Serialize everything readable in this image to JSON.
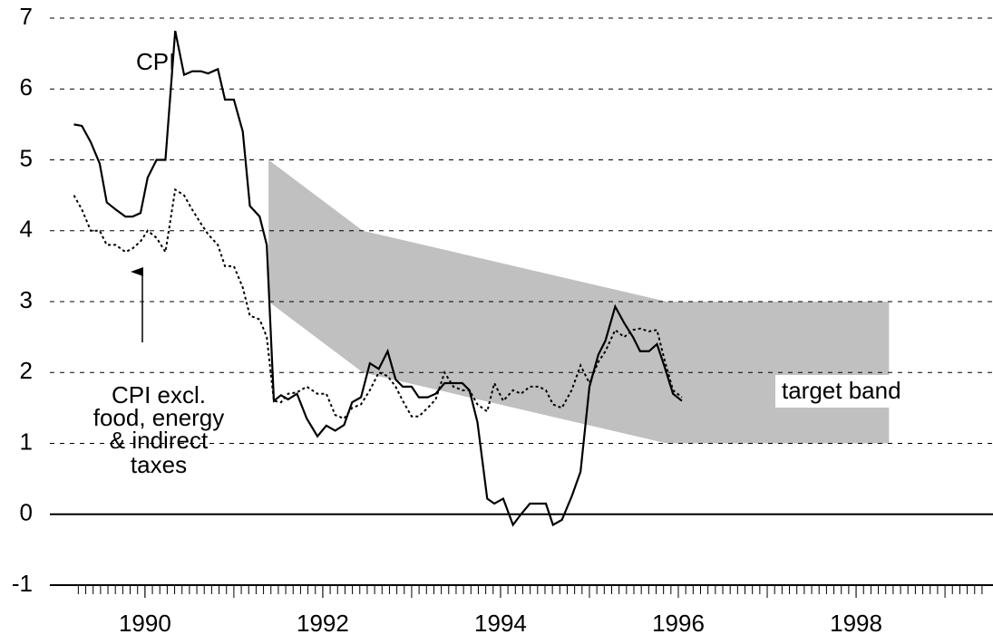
{
  "chart_data": {
    "type": "line",
    "x": [
      1989.2,
      1989.29,
      1989.39,
      1989.49,
      1989.57,
      1989.67,
      1989.78,
      1989.86,
      1989.95,
      1990.03,
      1990.13,
      1990.23,
      1990.34,
      1990.44,
      1990.53,
      1990.63,
      1990.71,
      1990.82,
      1990.9,
      1991.0,
      1991.1,
      1991.18,
      1991.29,
      1991.37,
      1991.45,
      1991.53,
      1991.61,
      1991.71,
      1991.82,
      1991.94,
      1992.04,
      1992.14,
      1992.24,
      1992.33,
      1992.43,
      1992.53,
      1992.63,
      1992.73,
      1992.82,
      1992.9,
      1993.0,
      1993.08,
      1993.18,
      1993.27,
      1993.37,
      1993.47,
      1993.57,
      1993.65,
      1993.74,
      1993.85,
      1993.93,
      1994.03,
      1994.14,
      1994.23,
      1994.33,
      1994.43,
      1994.51,
      1994.59,
      1994.69,
      1994.8,
      1994.9,
      1995.0,
      1995.1,
      1995.18,
      1995.29,
      1995.39,
      1995.49,
      1995.57,
      1995.67,
      1995.76,
      1995.84,
      1995.94,
      1996.04
    ],
    "series": [
      {
        "name": "CPI",
        "color": "#000000",
        "dash": false,
        "values": [
          5.5,
          5.48,
          5.25,
          4.95,
          4.4,
          4.3,
          4.2,
          4.2,
          4.25,
          4.75,
          5.0,
          5.0,
          6.82,
          6.2,
          6.25,
          6.25,
          6.22,
          6.28,
          5.85,
          5.85,
          5.4,
          4.35,
          4.2,
          3.8,
          1.6,
          1.68,
          1.62,
          1.7,
          1.35,
          1.1,
          1.25,
          1.18,
          1.26,
          1.58,
          1.65,
          2.13,
          2.05,
          2.3,
          1.9,
          1.8,
          1.8,
          1.65,
          1.65,
          1.7,
          1.85,
          1.85,
          1.85,
          1.75,
          1.3,
          0.22,
          0.15,
          0.22,
          -0.15,
          0,
          0.15,
          0.15,
          0.15,
          -0.15,
          -0.08,
          0.25,
          0.6,
          1.8,
          2.25,
          2.45,
          2.93,
          2.7,
          2.5,
          2.3,
          2.3,
          2.4,
          2.1,
          1.7,
          1.6
        ]
      },
      {
        "name": "CPI excl. food, energy & indirect taxes",
        "color": "#000000",
        "dash": true,
        "values": [
          4.5,
          4.3,
          4.0,
          4.0,
          3.8,
          3.8,
          3.7,
          3.75,
          3.85,
          4.0,
          3.9,
          3.7,
          4.58,
          4.5,
          4.3,
          4.1,
          3.95,
          3.8,
          3.5,
          3.5,
          3.2,
          2.8,
          2.75,
          2.5,
          1.6,
          1.58,
          1.7,
          1.72,
          1.8,
          1.7,
          1.7,
          1.4,
          1.35,
          1.5,
          1.55,
          1.75,
          2.0,
          1.95,
          1.8,
          1.6,
          1.38,
          1.38,
          1.5,
          1.62,
          2.0,
          1.8,
          1.75,
          1.75,
          1.55,
          1.45,
          1.85,
          1.6,
          1.75,
          1.7,
          1.8,
          1.8,
          1.75,
          1.55,
          1.5,
          1.75,
          2.1,
          1.85,
          2.15,
          2.3,
          2.6,
          2.5,
          2.6,
          2.62,
          2.58,
          2.6,
          2.2,
          1.75,
          1.65
        ]
      }
    ],
    "band": {
      "name": "target band",
      "color": "#c0c0c0",
      "x": [
        1991.39,
        1992.45,
        1995.87,
        1998.37
      ],
      "upper": [
        5,
        4,
        3,
        3
      ],
      "lower": [
        3,
        2,
        1,
        1
      ]
    },
    "annotations": {
      "cpi": "CPI",
      "core": [
        "CPI excl.",
        "food, energy",
        "& indirect",
        "taxes"
      ]
    },
    "xlim": [
      1988.93,
      1999.54
    ],
    "xticks": [
      1990,
      1992,
      1994,
      1996,
      1998
    ],
    "ylim": [
      -1,
      7
    ],
    "yticks": [
      -1,
      0,
      1,
      2,
      3,
      4,
      5,
      6,
      7
    ],
    "grid": true
  }
}
